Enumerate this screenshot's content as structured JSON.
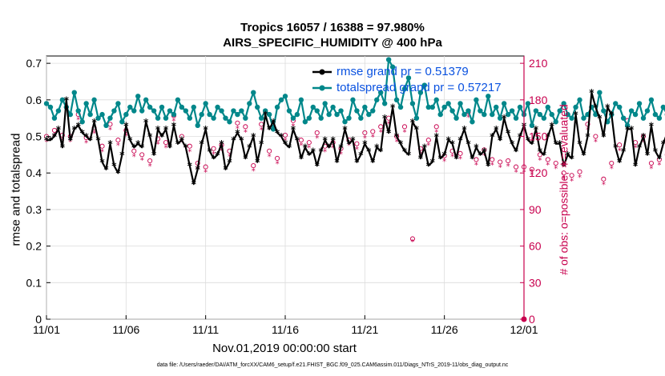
{
  "title_line1": "Tropics 16057 / 16388 = 97.980%",
  "title_line2": "AIRS_SPECIFIC_HUMIDITY @ 400 hPa",
  "xlabel": "Nov.01,2019 00:00:00 start",
  "ylabel_left": "rmse and totalspread",
  "ylabel_right": "# of obs: o=possible; ∗=evaluated",
  "footer": "data file: /Users/raeder/DAI/ATM_forcXX/CAM6_setup/f.e21.FHIST_BGC.f09_025.CAM6assim.011/Diags_NTrS_2019-11/obs_diag_output.nc",
  "legend": {
    "rmse_label": "rmse grand pr = 0.51379",
    "spread_label": "totalspread grand pr = 0.57217"
  },
  "colors": {
    "rmse": "#000000",
    "spread": "#00878a",
    "obs": "#c8004e",
    "legend_text": "#0a52e0"
  },
  "chart_data": {
    "type": "line",
    "title": "Tropics 16057 / 16388 = 97.980%  AIRS_SPECIFIC_HUMIDITY @ 400 hPa",
    "xlabel": "Nov.01,2019 00:00:00 start",
    "x_ticks": [
      0,
      5,
      10,
      15,
      20,
      25,
      30
    ],
    "x_tick_labels": [
      "11/01",
      "11/06",
      "11/11",
      "11/16",
      "11/21",
      "11/26",
      "12/01"
    ],
    "xlim": [
      0,
      30
    ],
    "ylim_left": [
      0,
      0.72
    ],
    "y_ticks_left": [
      0,
      0.1,
      0.2,
      0.3,
      0.4,
      0.5,
      0.6,
      0.7
    ],
    "y_tick_labels_left": [
      "0",
      "0.1",
      "0.2",
      "0.3",
      "0.4",
      "0.5",
      "0.6",
      "0.7"
    ],
    "ylim_right": [
      0,
      216
    ],
    "y_ticks_right": [
      0,
      30,
      60,
      90,
      120,
      150,
      180,
      210
    ],
    "y_tick_labels_right": [
      "0",
      "30",
      "60",
      "90",
      "120",
      "150",
      "180",
      "210"
    ],
    "grid": true,
    "legend_position": "top-right",
    "series": [
      {
        "name": "rmse grand pr = 0.51379",
        "axis": "left",
        "step": 0.25,
        "values": [
          0.49,
          0.49,
          0.5,
          0.52,
          0.47,
          0.6,
          0.49,
          0.52,
          0.53,
          0.51,
          0.5,
          0.49,
          0.54,
          0.49,
          0.43,
          0.41,
          0.48,
          0.42,
          0.4,
          0.45,
          0.53,
          0.49,
          0.47,
          0.48,
          0.47,
          0.54,
          0.5,
          0.45,
          0.52,
          0.5,
          0.52,
          0.47,
          0.53,
          0.48,
          0.49,
          0.47,
          0.42,
          0.37,
          0.41,
          0.48,
          0.52,
          0.46,
          0.44,
          0.45,
          0.48,
          0.41,
          0.43,
          0.49,
          0.51,
          0.49,
          0.44,
          0.47,
          0.5,
          0.43,
          0.48,
          0.56,
          0.52,
          0.54,
          0.51,
          0.5,
          0.48,
          0.47,
          0.52,
          0.49,
          0.44,
          0.47,
          0.45,
          0.46,
          0.42,
          0.46,
          0.49,
          0.47,
          0.49,
          0.43,
          0.47,
          0.52,
          0.48,
          0.49,
          0.43,
          0.45,
          0.48,
          0.46,
          0.43,
          0.47,
          0.46,
          0.55,
          0.51,
          0.58,
          0.5,
          0.48,
          0.46,
          0.45,
          0.54,
          0.52,
          0.44,
          0.47,
          0.42,
          0.43,
          0.5,
          0.44,
          0.45,
          0.49,
          0.48,
          0.44,
          0.49,
          0.52,
          0.48,
          0.44,
          0.47,
          0.45,
          0.46,
          0.42,
          0.5,
          0.52,
          0.49,
          0.55,
          0.51,
          0.48,
          0.46,
          0.5,
          0.53,
          0.49,
          0.48,
          0.52,
          0.46,
          0.45,
          0.5,
          0.53,
          0.48,
          0.48,
          0.42,
          0.45,
          0.44,
          0.56,
          0.48,
          0.45,
          0.5,
          0.62,
          0.58,
          0.55,
          0.5,
          0.58,
          0.56,
          0.47,
          0.43,
          0.46,
          0.52,
          0.52,
          0.42,
          0.47,
          0.5,
          0.45,
          0.53,
          0.46,
          0.44,
          0.48,
          0.51,
          0.44,
          0.45,
          0.48,
          0.47,
          0.54,
          0.57,
          0.46,
          0.48,
          0.49,
          0.43,
          0.44,
          0.52,
          0.46,
          0.48,
          0.5,
          0.52,
          0.48,
          0.47,
          0.45,
          0.5,
          0.55,
          0.52,
          0.59
        ]
      },
      {
        "name": "totalspread grand pr = 0.57217",
        "axis": "left",
        "step": 0.25,
        "values": [
          0.59,
          0.58,
          0.55,
          0.57,
          0.6,
          0.58,
          0.56,
          0.62,
          0.57,
          0.54,
          0.59,
          0.56,
          0.6,
          0.55,
          0.56,
          0.53,
          0.55,
          0.57,
          0.59,
          0.54,
          0.56,
          0.58,
          0.57,
          0.61,
          0.57,
          0.6,
          0.58,
          0.57,
          0.55,
          0.58,
          0.55,
          0.57,
          0.56,
          0.6,
          0.58,
          0.57,
          0.55,
          0.58,
          0.53,
          0.56,
          0.59,
          0.56,
          0.55,
          0.58,
          0.57,
          0.55,
          0.54,
          0.57,
          0.56,
          0.57,
          0.55,
          0.59,
          0.62,
          0.58,
          0.55,
          0.57,
          0.56,
          0.52,
          0.58,
          0.6,
          0.61,
          0.57,
          0.55,
          0.56,
          0.6,
          0.54,
          0.55,
          0.58,
          0.57,
          0.55,
          0.59,
          0.56,
          0.58,
          0.56,
          0.57,
          0.54,
          0.55,
          0.6,
          0.57,
          0.55,
          0.58,
          0.56,
          0.57,
          0.6,
          0.62,
          0.59,
          0.71,
          0.69,
          0.6,
          0.58,
          0.63,
          0.66,
          0.59,
          0.55,
          0.62,
          0.64,
          0.58,
          0.58,
          0.6,
          0.56,
          0.58,
          0.59,
          0.57,
          0.55,
          0.59,
          0.56,
          0.57,
          0.54,
          0.6,
          0.57,
          0.56,
          0.61,
          0.56,
          0.58,
          0.55,
          0.59,
          0.56,
          0.57,
          0.55,
          0.58,
          0.56,
          0.59,
          0.53,
          0.57,
          0.56,
          0.55,
          0.58,
          0.56,
          0.54,
          0.57,
          0.59,
          0.56,
          0.55,
          0.58,
          0.6,
          0.55,
          0.56,
          0.58,
          0.56,
          0.62,
          0.57,
          0.54,
          0.56,
          0.59,
          0.58,
          0.55,
          0.53,
          0.57,
          0.56,
          0.59,
          0.55,
          0.57,
          0.6,
          0.56,
          0.55,
          0.58,
          0.56,
          0.57,
          0.55,
          0.58,
          0.56,
          0.57,
          0.55,
          0.57,
          0.56,
          0.54,
          0.57,
          0.56,
          0.55,
          0.58,
          0.56,
          0.54,
          0.57,
          0.56,
          0.55,
          0.53,
          0.57,
          0.56,
          0.55,
          0.58,
          0.56,
          0.59,
          0.6,
          0.58
        ]
      },
      {
        "name": "possible obs",
        "axis": "right",
        "step": 0.5,
        "values": [
          150,
          155,
          151,
          150,
          168,
          149,
          157,
          142,
          160,
          147,
          155,
          138,
          135,
          130,
          148,
          145,
          167,
          150,
          142,
          128,
          125,
          140,
          143,
          138,
          161,
          158,
          126,
          160,
          138,
          132,
          151,
          163,
          147,
          145,
          153,
          142,
          145,
          140,
          147,
          144,
          153,
          154,
          158,
          165,
          150,
          158,
          66,
          140,
          147,
          158,
          134,
          138,
          136,
          170,
          131,
          139,
          131,
          129,
          130,
          125,
          125,
          123,
          135,
          131,
          128,
          120,
          118,
          121,
          160,
          150,
          115,
          128,
          143,
          163,
          145,
          150,
          128,
          131,
          135,
          138,
          144,
          143,
          136,
          150,
          130,
          138,
          128,
          141,
          137,
          143,
          135,
          142,
          138,
          147,
          139,
          135,
          145,
          154,
          148,
          143,
          130,
          136,
          154,
          145,
          150,
          143,
          141,
          143,
          140,
          139,
          136,
          146,
          155,
          135,
          142,
          125,
          133,
          138,
          150,
          139,
          152,
          145,
          160,
          136,
          143,
          158,
          142,
          148,
          132,
          137,
          145,
          130,
          133,
          145,
          143,
          138,
          149,
          160,
          141,
          152,
          139,
          144,
          134,
          155,
          146,
          138,
          136,
          146,
          143,
          155,
          139,
          145,
          152,
          148,
          133,
          137,
          143,
          140,
          138,
          145,
          150,
          143,
          128,
          132,
          140,
          155,
          143,
          137,
          146,
          148,
          139,
          150,
          160,
          143,
          147,
          149,
          140,
          145,
          143,
          160,
          142,
          140,
          143,
          146,
          158,
          140,
          149,
          142,
          150,
          141,
          160,
          145,
          135,
          133,
          147,
          150,
          144,
          146,
          143,
          140,
          148,
          145,
          142,
          138,
          141,
          144,
          152,
          140,
          143,
          148,
          140,
          145,
          150,
          142,
          148,
          138,
          143,
          147,
          152,
          145,
          140,
          137,
          145,
          148,
          143,
          140,
          146,
          142,
          147,
          143
        ]
      },
      {
        "name": "evaluated obs",
        "axis": "right",
        "step": 0.5,
        "values": [
          146,
          151,
          147,
          146,
          164,
          145,
          153,
          138,
          156,
          143,
          151,
          134,
          131,
          126,
          144,
          141,
          163,
          146,
          138,
          124,
          121,
          136,
          139,
          134,
          157,
          154,
          122,
          156,
          134,
          128,
          147,
          159,
          143,
          141,
          149,
          138,
          141,
          136,
          143,
          140,
          149,
          150,
          154,
          161,
          146,
          154,
          64,
          136,
          143,
          154,
          130,
          134,
          132,
          166,
          127,
          135,
          127,
          125,
          126,
          121,
          121,
          119,
          131,
          127,
          124,
          116,
          114,
          117,
          156,
          146,
          111,
          124,
          139,
          159,
          141,
          146,
          124,
          127,
          131,
          134,
          140,
          139,
          132,
          146,
          126,
          134,
          124,
          137,
          133,
          139,
          131,
          138,
          134,
          143,
          135,
          131,
          141,
          150,
          144,
          139,
          126,
          132,
          150,
          141,
          146,
          139,
          137,
          139,
          136,
          135,
          132,
          142,
          151,
          131,
          138,
          121,
          129,
          134,
          146,
          135,
          148,
          141,
          156,
          132,
          139,
          154,
          138,
          144,
          128,
          133,
          141,
          126,
          129,
          141,
          139,
          134,
          145,
          156,
          137,
          148,
          135,
          140,
          130,
          151,
          142,
          134,
          132,
          142,
          139,
          151,
          135,
          141,
          148,
          144,
          129,
          133,
          139,
          136,
          134,
          141,
          146,
          139,
          124,
          128,
          136,
          151,
          139,
          133,
          142,
          144,
          135,
          146,
          156,
          139,
          143,
          145,
          136,
          141,
          139,
          156,
          138,
          136,
          139,
          142,
          154,
          136,
          145,
          138,
          146,
          137,
          156,
          141,
          131,
          129,
          143,
          146,
          140,
          142,
          139,
          136,
          144,
          141,
          138,
          134,
          137,
          140,
          148,
          136,
          139,
          144,
          136,
          141,
          146,
          138,
          144,
          134,
          139,
          143,
          148,
          141,
          136,
          133,
          141,
          144,
          139,
          136,
          142,
          138,
          143,
          139
        ]
      }
    ]
  }
}
